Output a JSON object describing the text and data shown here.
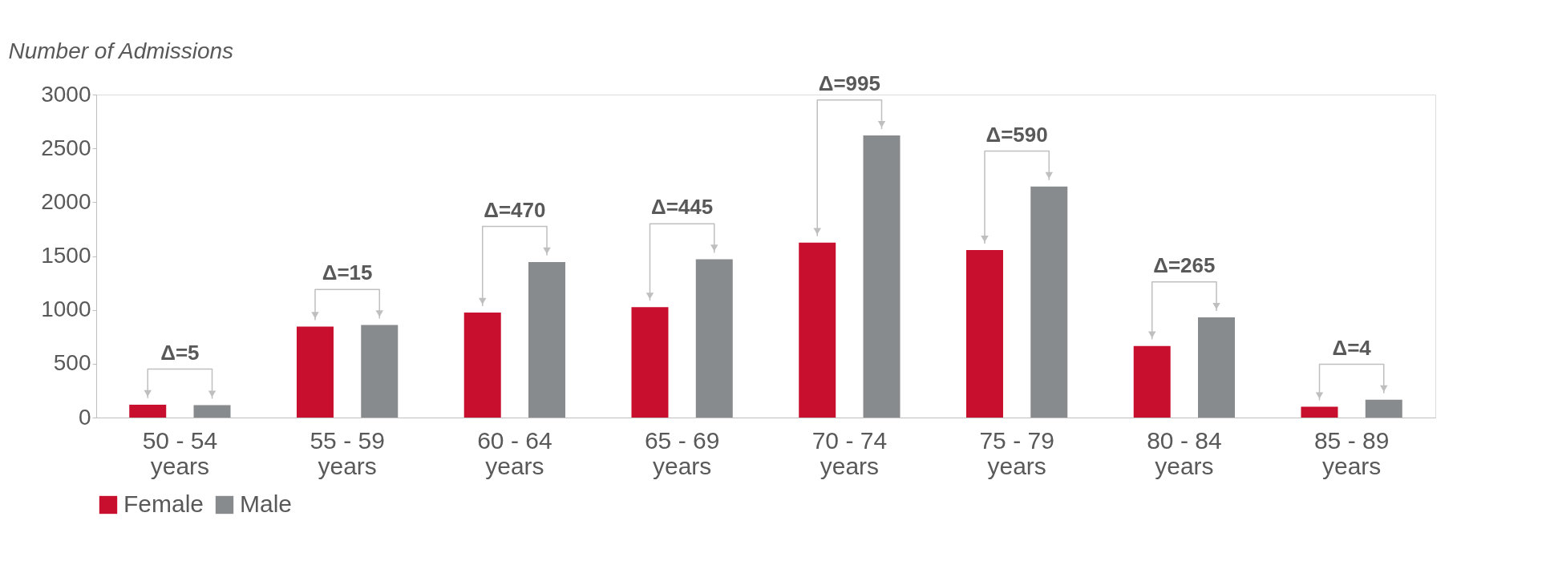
{
  "chart_data": {
    "type": "bar",
    "ylabel": "Number of Admissions",
    "categories": [
      "50 - 54 years",
      "55 - 59 years",
      "60 - 64 years",
      "65 - 69 years",
      "70 - 74 years",
      "75 - 79 years",
      "80 - 84 years",
      "85 - 89 years"
    ],
    "series": [
      {
        "name": "Female",
        "color": "#c8102e",
        "values": [
          120,
          845,
          975,
          1025,
          1625,
          1555,
          665,
          100
        ]
      },
      {
        "name": "Male",
        "color": "#888b8d",
        "values": [
          115,
          860,
          1445,
          1470,
          2620,
          2145,
          930,
          165
        ]
      }
    ],
    "ylim": [
      0,
      3000
    ],
    "yticks": [
      0,
      500,
      1000,
      1500,
      2000,
      2500,
      3000
    ],
    "annotations": [
      "Δ=5",
      "Δ=15",
      "Δ=470",
      "Δ=445",
      "Δ=995",
      "Δ=590",
      "Δ=265",
      "Δ=4"
    ],
    "grid": false,
    "legend": "bottom"
  }
}
